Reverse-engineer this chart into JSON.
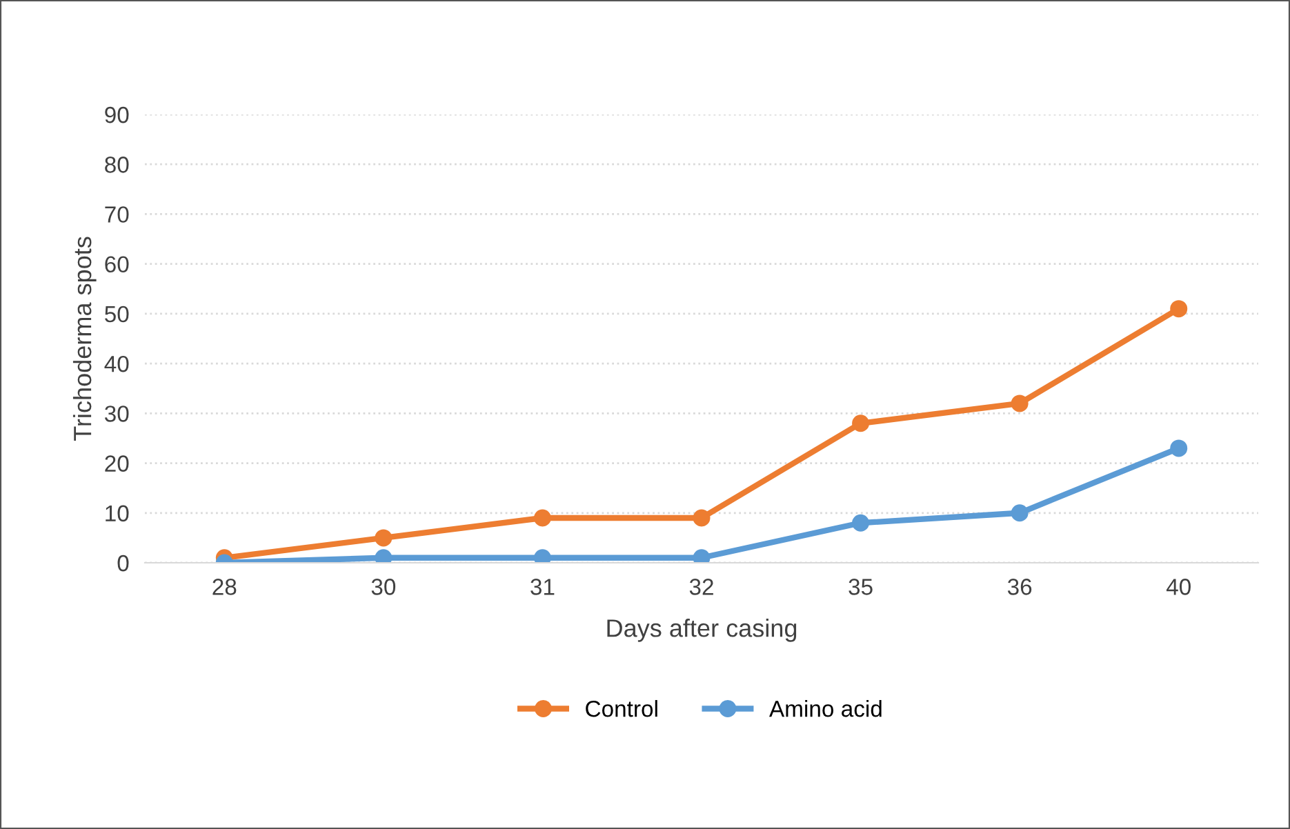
{
  "chart_data": {
    "type": "line",
    "xlabel": "Days after casing",
    "ylabel": "Trichoderma spots",
    "categories": [
      "28",
      "30",
      "31",
      "32",
      "35",
      "36",
      "40"
    ],
    "series": [
      {
        "name": "Control",
        "color": "#ed7d31",
        "values": [
          1,
          5,
          9,
          9,
          28,
          32,
          51
        ]
      },
      {
        "name": "Amino acid",
        "color": "#5b9bd5",
        "values": [
          0,
          1,
          1,
          1,
          8,
          10,
          23
        ]
      }
    ],
    "ylim": [
      0,
      90
    ],
    "yticks": [
      0,
      10,
      20,
      30,
      40,
      50,
      60,
      70,
      80,
      90
    ],
    "grid": "y",
    "legend": "bottom",
    "marker": "circle",
    "line_style": "solid"
  }
}
